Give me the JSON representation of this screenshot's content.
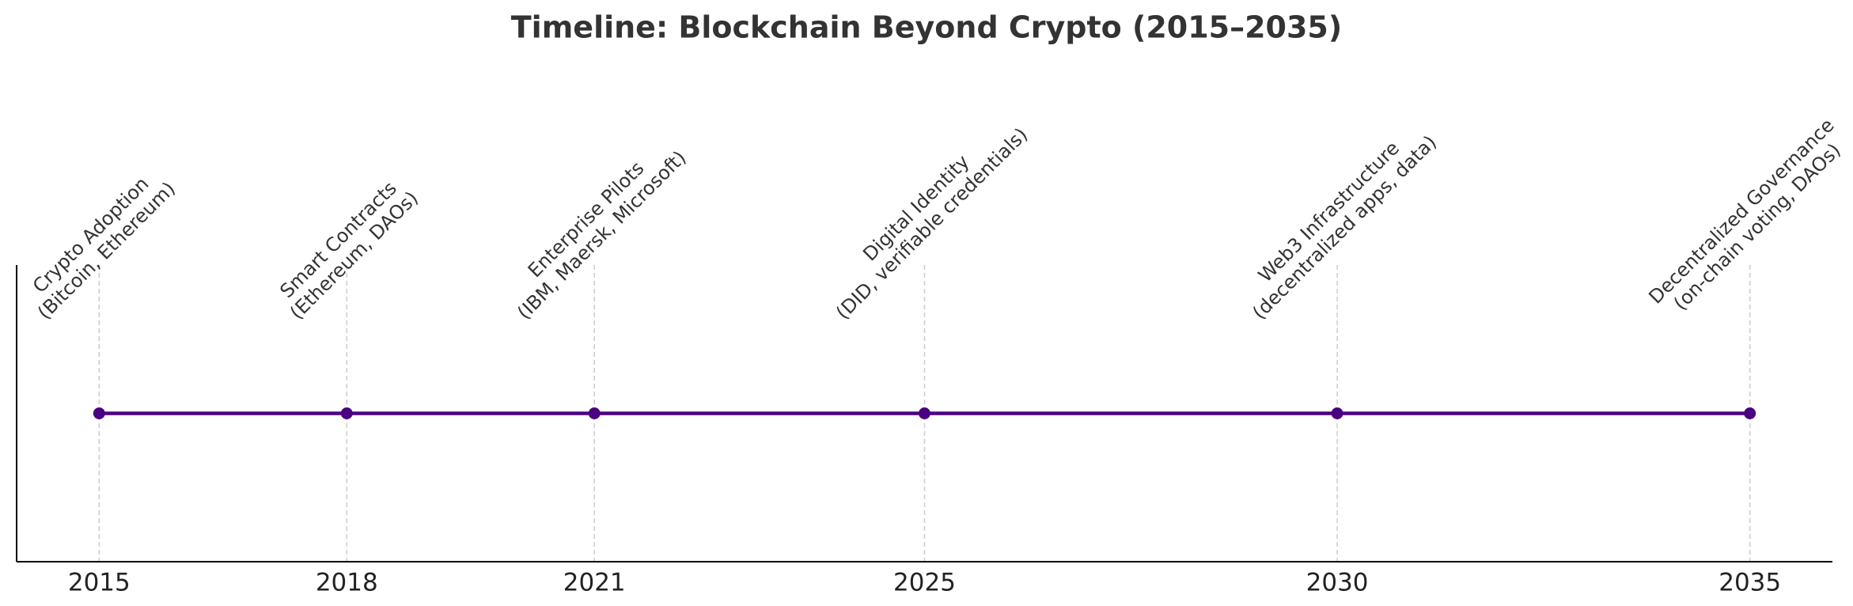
{
  "chart_data": {
    "type": "line",
    "title": "Timeline: Blockchain Beyond Crypto (2015–2035)",
    "x": [
      2015,
      2018,
      2021,
      2025,
      2030,
      2035
    ],
    "values": [
      1,
      1,
      1,
      1,
      1,
      1
    ],
    "labels": [
      [
        "Crypto Adoption",
        "(Bitcoin, Ethereum)"
      ],
      [
        "Smart Contracts",
        "(Ethereum, DAOs)"
      ],
      [
        "Enterprise Pilots",
        "(IBM, Maersk, Microsoft)"
      ],
      [
        "Digital Identity",
        "(DID, verifiable credentials)"
      ],
      [
        "Web3 Infrastructure",
        "(decentralized apps, data)"
      ],
      [
        "Decentralized Governance",
        "(on-chain voting, DAOs)"
      ]
    ],
    "color": "#4b0082",
    "xlim": [
      2014,
      2036
    ],
    "ylim": [
      0,
      2
    ],
    "xticks": [
      2015,
      2018,
      2021,
      2025,
      2030,
      2035
    ],
    "grid": true
  }
}
